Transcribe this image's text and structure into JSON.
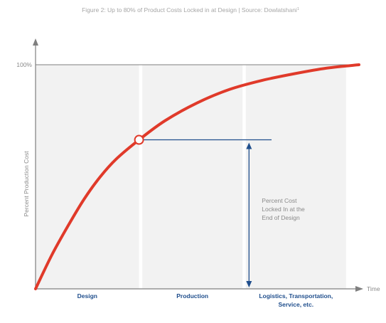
{
  "caption": "Figure 2: Up to 80% of Product Costs Locked in at Design | Source: Dowlatshani",
  "caption_footnote": "1",
  "colors": {
    "curve": "#e03a2a",
    "annotation": "#1f4e8c",
    "panel": "#f2f2f2",
    "axis": "#7f7f7f",
    "text": "#8a8a8a",
    "phase_text": "#1f4e8c"
  },
  "chart_data": {
    "type": "line",
    "title": "",
    "xlabel": "Time",
    "ylabel": "Percent Production Cost",
    "yticks": [
      {
        "value": 100,
        "label": "100%"
      }
    ],
    "ylim": [
      0,
      100
    ],
    "xlim": [
      0,
      100
    ],
    "grid": false,
    "phases": [
      {
        "name": "Design",
        "start": 0,
        "end": 32
      },
      {
        "name": "Production",
        "start": 33,
        "end": 64
      },
      {
        "name": "Logistics, Transportation, Service, etc.",
        "start": 65,
        "end": 96
      }
    ],
    "series": [
      {
        "x": [
          0,
          5,
          10,
          15,
          20,
          25,
          32,
          40,
          50,
          60,
          70,
          80,
          90,
          100
        ],
        "values": [
          0,
          15,
          28,
          40,
          50,
          58,
          66.5,
          75,
          83,
          89,
          93,
          96,
          98.5,
          100
        ]
      }
    ],
    "highlight_point": {
      "x": 32,
      "y": 66.5
    },
    "annotation": {
      "text_lines": [
        "Percent Cost",
        "Locked In at the",
        "End of Design"
      ],
      "arrow_x": 66
    }
  }
}
